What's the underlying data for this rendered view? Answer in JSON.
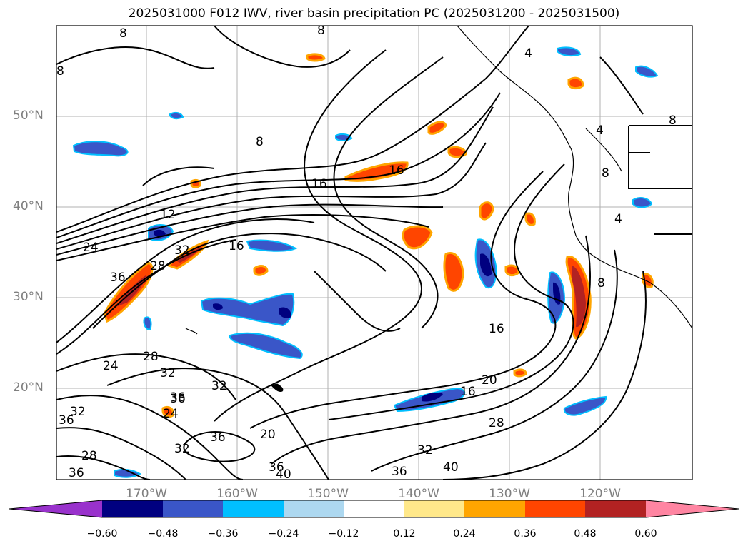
{
  "title": "2025031000 F012 IWV, river basin precipitation PC (2025031200 - 2025031500)",
  "latitude_labels": [
    "50°N",
    "40°N",
    "30°N",
    "20°N"
  ],
  "longitude_labels": [
    "170°W",
    "160°W",
    "150°W",
    "140°W",
    "130°W",
    "120°W"
  ],
  "colorbar": {
    "ticks": [
      "−0.60",
      "−0.48",
      "−0.36",
      "−0.24",
      "−0.12",
      "0.12",
      "0.24",
      "0.36",
      "0.48",
      "0.60"
    ],
    "colors": [
      "#9932cc",
      "#000080",
      "#3a56c8",
      "#00bfff",
      "#add8f0",
      "#ffffff",
      "#ffe88a",
      "#ffa500",
      "#ff4500",
      "#b22222",
      "#ff85a2"
    ]
  },
  "contour_labels": [
    "8",
    "8",
    "8",
    "8",
    "4",
    "12",
    "16",
    "24",
    "36",
    "28",
    "32",
    "32",
    "16",
    "16",
    "8",
    "8",
    "8",
    "4",
    "4",
    "16",
    "16",
    "20",
    "28",
    "32",
    "36",
    "40",
    "36",
    "36",
    "40",
    "20",
    "24",
    "32",
    "36",
    "28",
    "24",
    "32",
    "36",
    "28",
    "36",
    "32",
    "36"
  ]
}
